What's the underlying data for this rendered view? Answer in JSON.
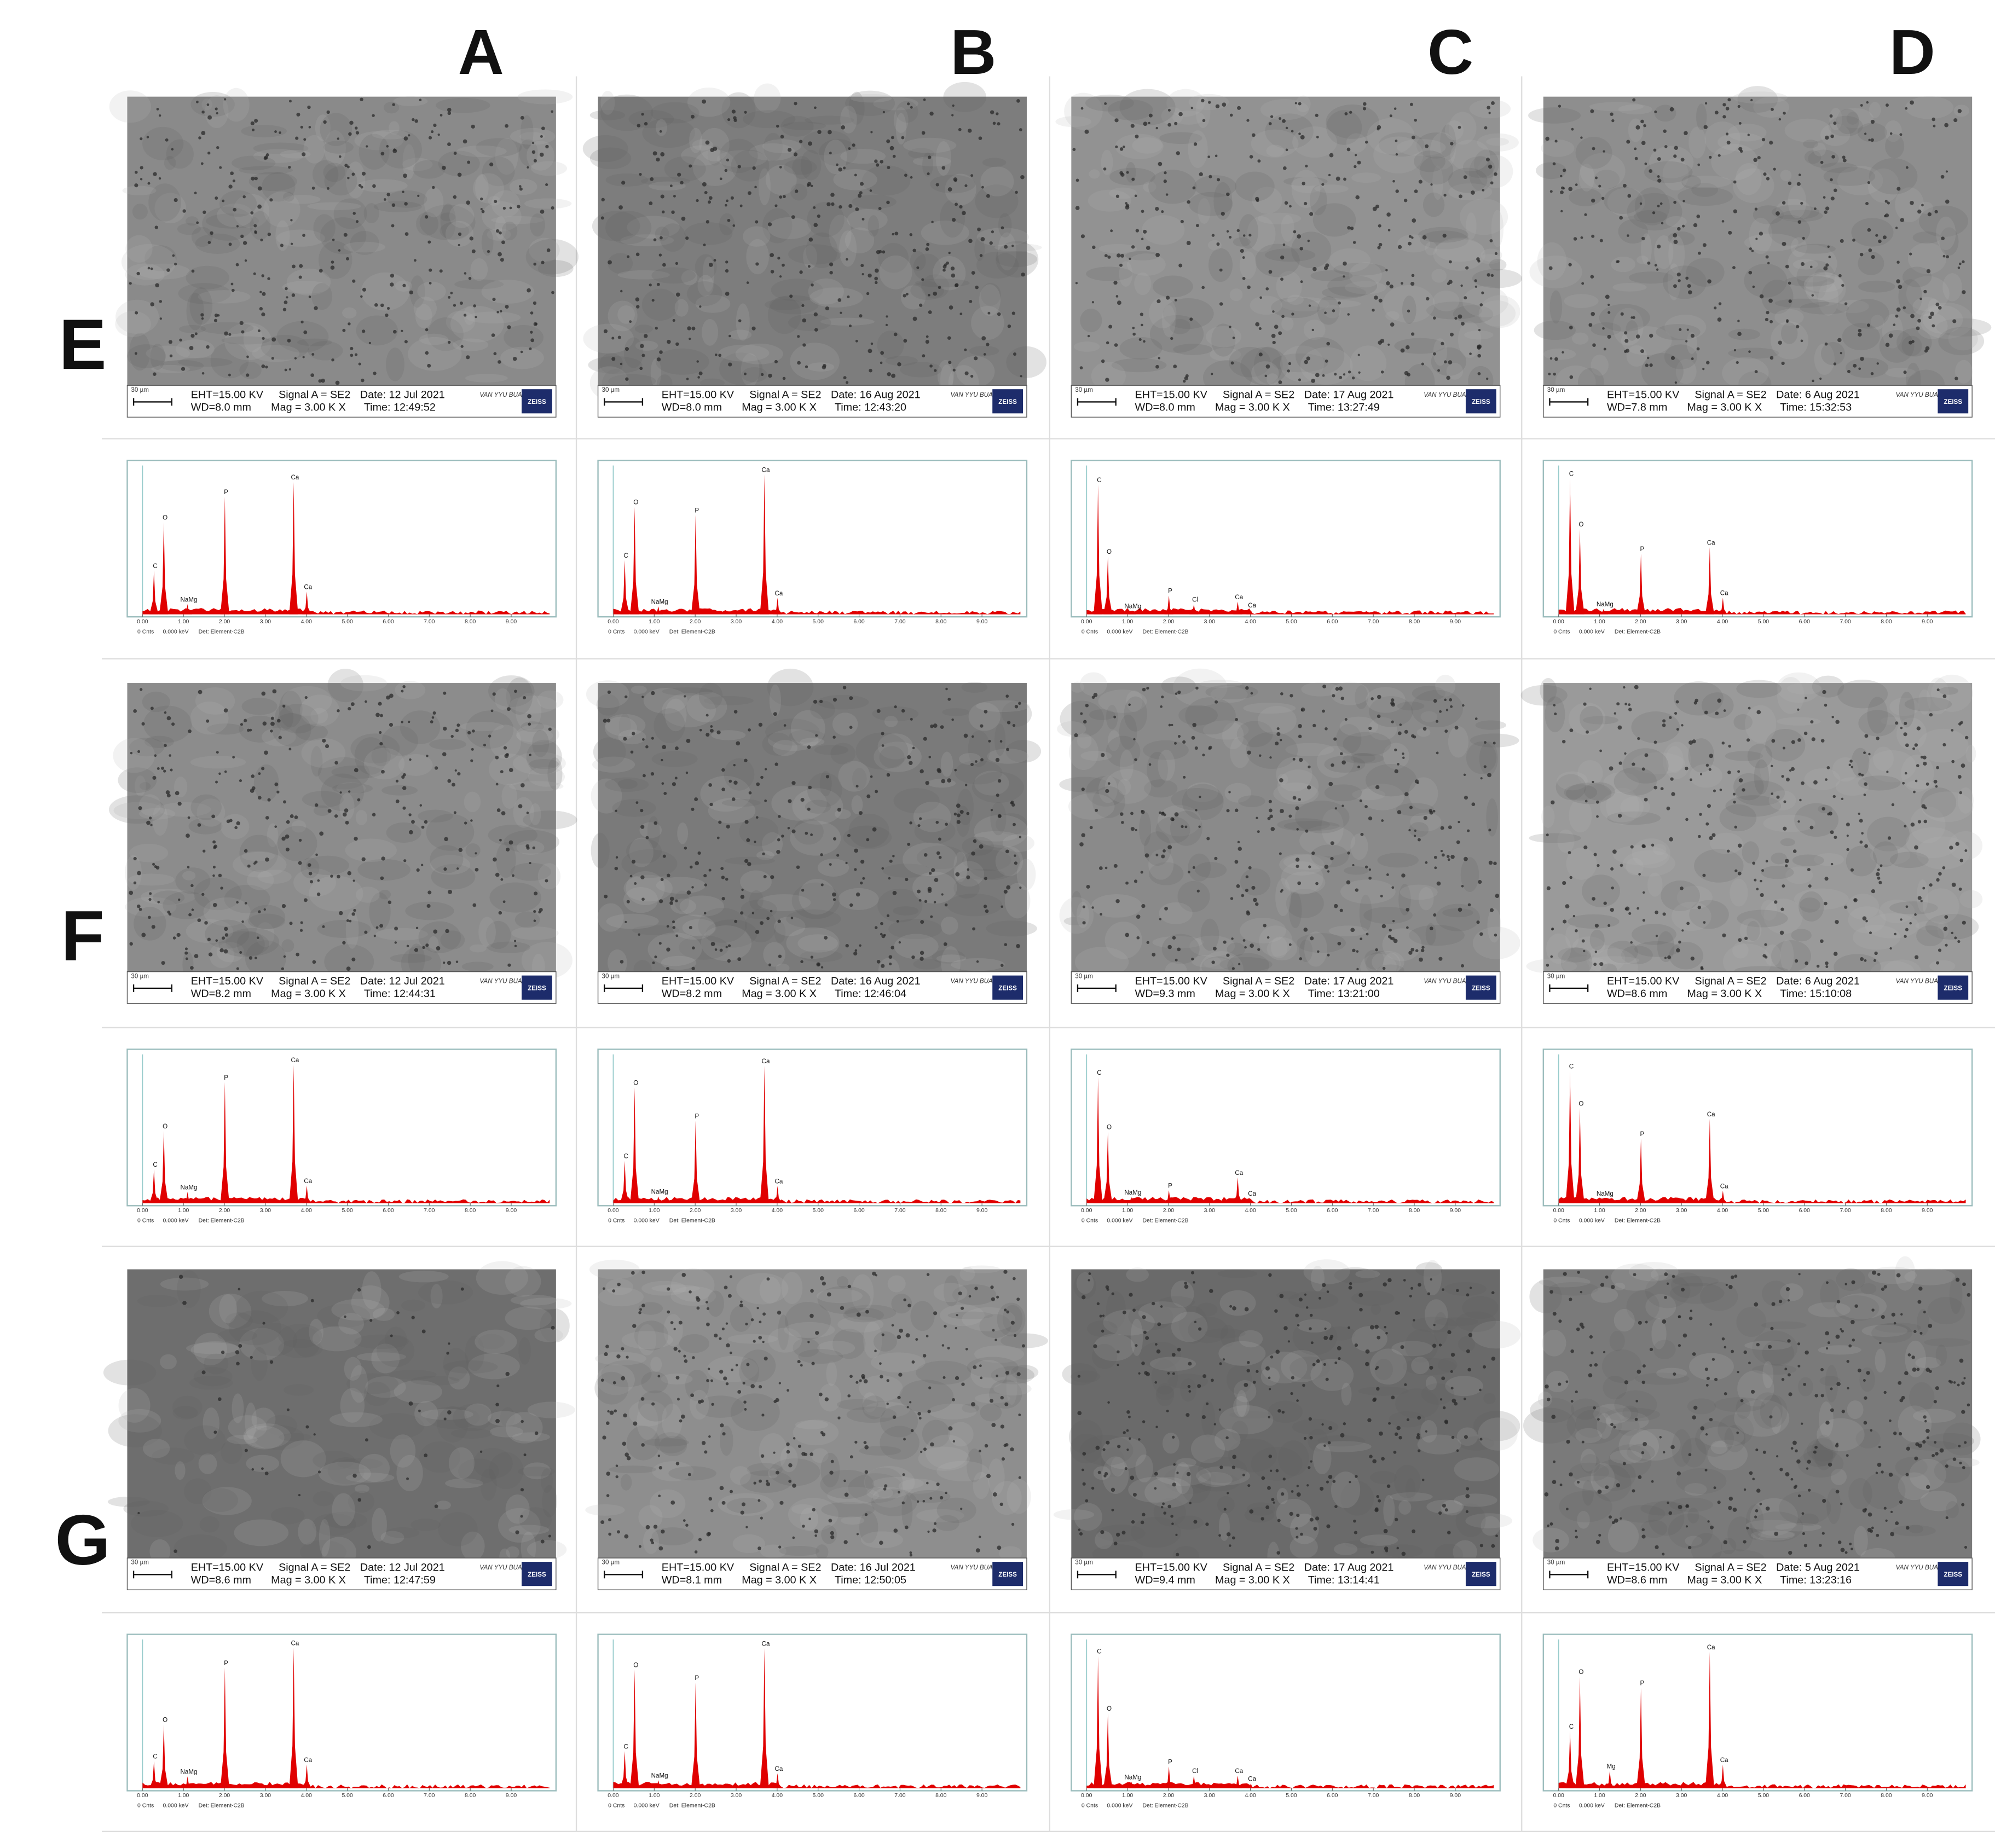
{
  "columns": [
    "A",
    "B",
    "C",
    "D"
  ],
  "sem_common": {
    "eht": "EHT=15.00 KV",
    "signal": "Signal A = SE2",
    "mag": "Mag = 3.00 K X",
    "scale": "30 µm",
    "org": "VAN YYU BUAM",
    "brand": "ZEISS"
  },
  "eds_axis": {
    "xlim": [
      0,
      10
    ],
    "xticks": [
      {
        "value": 0,
        "label": "0.00"
      },
      {
        "value": 1,
        "label": "1.00"
      },
      {
        "value": 2,
        "label": "2.00"
      },
      {
        "value": 3,
        "label": "3.00"
      },
      {
        "value": 4,
        "label": "4.00"
      },
      {
        "value": 5,
        "label": "5.00"
      },
      {
        "value": 6,
        "label": "6.00"
      },
      {
        "value": 7,
        "label": "7.00"
      },
      {
        "value": 8,
        "label": "8.00"
      },
      {
        "value": 9,
        "label": "9.00"
      }
    ],
    "footer": [
      "0 Cnts",
      "0.000 keV",
      "Det: Element-C2B"
    ]
  },
  "rows": [
    {
      "label": "E",
      "cells": [
        {
          "sem": {
            "date": "Date: 12 Jul 2021",
            "wd": "WD=8.0 mm",
            "time": "Time: 12:49:52"
          },
          "eds": {
            "ylim": [
              0,
              1900
            ],
            "peaks": [
              {
                "label": "C",
                "x": 0.28,
                "value": 560
              },
              {
                "label": "O",
                "x": 0.52,
                "value": 1175
              },
              {
                "label": "NaMg",
                "x": 1.1,
                "value": 130
              },
              {
                "label": "P",
                "x": 2.01,
                "value": 1500
              },
              {
                "label": "Ca",
                "x": 3.69,
                "value": 1690
              },
              {
                "label": "Ca",
                "x": 4.01,
                "value": 290
              }
            ]
          }
        },
        {
          "sem": {
            "date": "Date: 16 Aug 2021",
            "wd": "WD=8.0 mm",
            "time": "Time: 12:43:20"
          },
          "eds": {
            "ylim": [
              0,
              2800
            ],
            "peaks": [
              {
                "label": "C",
                "x": 0.28,
                "value": 1020
              },
              {
                "label": "O",
                "x": 0.52,
                "value": 2020
              },
              {
                "label": "NaMg",
                "x": 1.1,
                "value": 150
              },
              {
                "label": "P",
                "x": 2.01,
                "value": 1870
              },
              {
                "label": "Ca",
                "x": 3.69,
                "value": 2630
              },
              {
                "label": "Ca",
                "x": 4.01,
                "value": 310
              }
            ]
          }
        },
        {
          "sem": {
            "date": "Date: 17 Aug 2021",
            "wd": "WD=8.0 mm",
            "time": "Time: 13:27:49"
          },
          "eds": {
            "ylim": [
              0,
              3420
            ],
            "peaks": [
              {
                "label": "C",
                "x": 0.28,
                "value": 2980
              },
              {
                "label": "O",
                "x": 0.52,
                "value": 1330
              },
              {
                "label": "NaMg",
                "x": 1.1,
                "value": 80
              },
              {
                "label": "P",
                "x": 2.01,
                "value": 430
              },
              {
                "label": "Cl",
                "x": 2.62,
                "value": 230
              },
              {
                "label": "Ca",
                "x": 3.69,
                "value": 290
              },
              {
                "label": "Ca",
                "x": 4.01,
                "value": 100
              }
            ]
          }
        },
        {
          "sem": {
            "date": "Date: 6 Aug 2021",
            "wd": "WD=7.8 mm",
            "time": "Time: 15:32:53"
          },
          "eds": {
            "ylim": [
              0,
              1620
            ],
            "peaks": [
              {
                "label": "C",
                "x": 0.28,
                "value": 1480
              },
              {
                "label": "O",
                "x": 0.52,
                "value": 930
              },
              {
                "label": "NaMg",
                "x": 1.1,
                "value": 60
              },
              {
                "label": "P",
                "x": 2.01,
                "value": 660
              },
              {
                "label": "Ca",
                "x": 3.69,
                "value": 730
              },
              {
                "label": "Ca",
                "x": 4.01,
                "value": 180
              }
            ]
          }
        }
      ]
    },
    {
      "label": "F",
      "cells": [
        {
          "sem": {
            "date": "Date: 12 Jul 2021",
            "wd": "WD=8.2 mm",
            "time": "Time: 12:44:31"
          },
          "eds": {
            "ylim": [
              0,
              1710
            ],
            "peaks": [
              {
                "label": "C",
                "x": 0.28,
                "value": 390
              },
              {
                "label": "O",
                "x": 0.52,
                "value": 830
              },
              {
                "label": "NaMg",
                "x": 1.1,
                "value": 130
              },
              {
                "label": "P",
                "x": 2.01,
                "value": 1390
              },
              {
                "label": "Ca",
                "x": 3.69,
                "value": 1590
              },
              {
                "label": "Ca",
                "x": 4.01,
                "value": 200
              }
            ]
          }
        },
        {
          "sem": {
            "date": "Date: 16 Aug 2021",
            "wd": "WD=8.2 mm",
            "time": "Time: 12:46:04"
          },
          "eds": {
            "ylim": [
              0,
              1300
            ],
            "peaks": [
              {
                "label": "C",
                "x": 0.28,
                "value": 370
              },
              {
                "label": "O",
                "x": 0.52,
                "value": 1010
              },
              {
                "label": "NaMg",
                "x": 1.1,
                "value": 60
              },
              {
                "label": "P",
                "x": 2.01,
                "value": 720
              },
              {
                "label": "Ca",
                "x": 3.69,
                "value": 1200
              },
              {
                "label": "Ca",
                "x": 4.01,
                "value": 150
              }
            ]
          }
        },
        {
          "sem": {
            "date": "Date: 17 Aug 2021",
            "wd": "WD=9.3 mm",
            "time": "Time: 13:21:00"
          },
          "eds": {
            "ylim": [
              0,
              1500
            ],
            "peaks": [
              {
                "label": "C",
                "x": 0.28,
                "value": 1270
              },
              {
                "label": "O",
                "x": 0.52,
                "value": 720
              },
              {
                "label": "NaMg",
                "x": 1.1,
                "value": 60
              },
              {
                "label": "P",
                "x": 2.01,
                "value": 130
              },
              {
                "label": "Ca",
                "x": 3.69,
                "value": 260
              },
              {
                "label": "Ca",
                "x": 4.01,
                "value": 50
              }
            ]
          }
        },
        {
          "sem": {
            "date": "Date: 6 Aug 2021",
            "wd": "WD=8.6 mm",
            "time": "Time: 15:10:08"
          },
          "eds": {
            "ylim": [
              0,
              1800
            ],
            "peaks": [
              {
                "label": "C",
                "x": 0.28,
                "value": 1600
              },
              {
                "label": "O",
                "x": 0.52,
                "value": 1150
              },
              {
                "label": "NaMg",
                "x": 1.1,
                "value": 60
              },
              {
                "label": "P",
                "x": 2.01,
                "value": 780
              },
              {
                "label": "Ca",
                "x": 3.69,
                "value": 1020
              },
              {
                "label": "Ca",
                "x": 4.01,
                "value": 150
              }
            ]
          }
        }
      ]
    },
    {
      "label": "G",
      "cells": [
        {
          "sem": {
            "date": "Date: 12 Jul 2021",
            "wd": "WD=8.6 mm",
            "time": "Time: 12:47:59"
          },
          "eds": {
            "ylim": [
              0,
              1260
            ],
            "peaks": [
              {
                "label": "C",
                "x": 0.28,
                "value": 230
              },
              {
                "label": "O",
                "x": 0.52,
                "value": 540
              },
              {
                "label": "NaMg",
                "x": 1.1,
                "value": 100
              },
              {
                "label": "P",
                "x": 2.01,
                "value": 1020
              },
              {
                "label": "Ca",
                "x": 3.69,
                "value": 1190
              },
              {
                "label": "Ca",
                "x": 4.01,
                "value": 200
              }
            ]
          }
        },
        {
          "sem": {
            "date": "Date: 16 Jul 2021",
            "wd": "WD=8.1 mm",
            "time": "Time: 12:50:05"
          },
          "eds": {
            "ylim": [
              0,
              3690
            ],
            "peaks": [
              {
                "label": "C",
                "x": 0.28,
                "value": 920
              },
              {
                "label": "O",
                "x": 0.52,
                "value": 2940
              },
              {
                "label": "NaMg",
                "x": 1.1,
                "value": 200
              },
              {
                "label": "P",
                "x": 2.01,
                "value": 2620
              },
              {
                "label": "Ca",
                "x": 3.69,
                "value": 3470
              },
              {
                "label": "Ca",
                "x": 4.01,
                "value": 370
              }
            ]
          }
        },
        {
          "sem": {
            "date": "Date: 17 Aug 2021",
            "wd": "WD=9.4 mm",
            "time": "Time: 13:14:41"
          },
          "eds": {
            "ylim": [
              0,
              4720
            ],
            "peaks": [
              {
                "label": "C",
                "x": 0.28,
                "value": 4190
              },
              {
                "label": "O",
                "x": 0.52,
                "value": 2380
              },
              {
                "label": "NaMg",
                "x": 1.1,
                "value": 200
              },
              {
                "label": "P",
                "x": 2.01,
                "value": 690
              },
              {
                "label": "Cl",
                "x": 2.62,
                "value": 400
              },
              {
                "label": "Ca",
                "x": 3.69,
                "value": 400
              },
              {
                "label": "Ca",
                "x": 4.01,
                "value": 150
              }
            ]
          }
        },
        {
          "sem": {
            "date": "Date: 5 Aug 2021",
            "wd": "WD=8.6 mm",
            "time": "Time: 13:23:16"
          },
          "eds": {
            "ylim": [
              0,
              1200
            ],
            "peaks": [
              {
                "label": "C",
                "x": 0.28,
                "value": 460
              },
              {
                "label": "O",
                "x": 0.52,
                "value": 900
              },
              {
                "label": "Mg",
                "x": 1.25,
                "value": 140
              },
              {
                "label": "P",
                "x": 2.01,
                "value": 810
              },
              {
                "label": "Ca",
                "x": 3.69,
                "value": 1100
              },
              {
                "label": "Ca",
                "x": 4.01,
                "value": 190
              }
            ]
          }
        }
      ]
    }
  ]
}
